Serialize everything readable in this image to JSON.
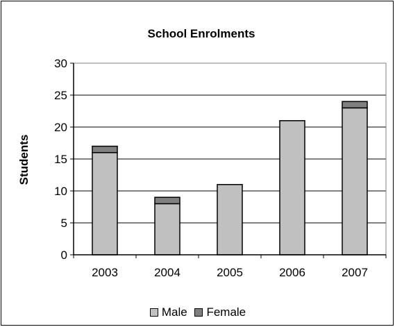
{
  "chart_data": {
    "type": "bar",
    "stacked": true,
    "title": "School Enrolments",
    "xlabel": "",
    "ylabel": "Students",
    "categories": [
      "2003",
      "2004",
      "2005",
      "2006",
      "2007"
    ],
    "series": [
      {
        "name": "Male",
        "values": [
          16,
          8,
          11,
          21,
          23
        ],
        "color": "#c0c0c0"
      },
      {
        "name": "Female",
        "values": [
          1,
          1,
          0,
          0,
          1
        ],
        "color": "#808080"
      }
    ],
    "ylim": [
      0,
      30
    ],
    "yticks": [
      "0",
      "5",
      "10",
      "15",
      "20",
      "25",
      "30"
    ],
    "grid": true,
    "legend": "bottom",
    "plot_background": "#ffffff",
    "outline_color": "#000000"
  }
}
